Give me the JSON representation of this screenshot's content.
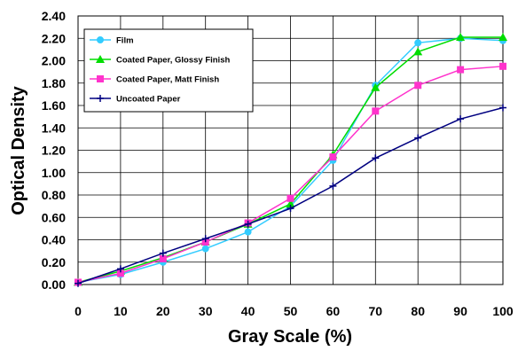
{
  "chart_data": {
    "type": "line",
    "xlabel": "Gray Scale (%)",
    "ylabel": "Optical Density",
    "x": [
      0,
      10,
      20,
      30,
      40,
      50,
      60,
      70,
      80,
      90,
      100
    ],
    "xlim": [
      0,
      100
    ],
    "ylim": [
      0,
      2.4
    ],
    "x_ticks": [
      "0",
      "10",
      "20",
      "30",
      "40",
      "50",
      "60",
      "70",
      "80",
      "90",
      "100"
    ],
    "y_ticks": [
      "0.00",
      "0.20",
      "0.40",
      "0.60",
      "0.80",
      "1.00",
      "1.20",
      "1.40",
      "1.60",
      "1.80",
      "2.00",
      "2.20",
      "2.40"
    ],
    "grid": true,
    "legend_position": "top-left",
    "series": [
      {
        "name": "Film",
        "color": "#33ccff",
        "marker": "circle",
        "values": [
          0.02,
          0.09,
          0.2,
          0.32,
          0.47,
          0.7,
          1.11,
          1.78,
          2.16,
          2.2,
          2.18
        ]
      },
      {
        "name": "Coated Paper, Glossy Finish",
        "color": "#00dd00",
        "marker": "triangle",
        "values": [
          0.02,
          0.12,
          0.24,
          0.38,
          0.54,
          0.72,
          1.16,
          1.76,
          2.08,
          2.21,
          2.21
        ]
      },
      {
        "name": "Coated Paper, Matt Finish",
        "color": "#ff33cc",
        "marker": "square",
        "values": [
          0.02,
          0.1,
          0.23,
          0.38,
          0.55,
          0.77,
          1.14,
          1.55,
          1.78,
          1.92,
          1.95
        ]
      },
      {
        "name": "Uncoated  Paper",
        "color": "#000080",
        "marker": "plus",
        "values": [
          0.01,
          0.14,
          0.28,
          0.41,
          0.54,
          0.68,
          0.88,
          1.13,
          1.31,
          1.48,
          1.58
        ]
      }
    ]
  }
}
